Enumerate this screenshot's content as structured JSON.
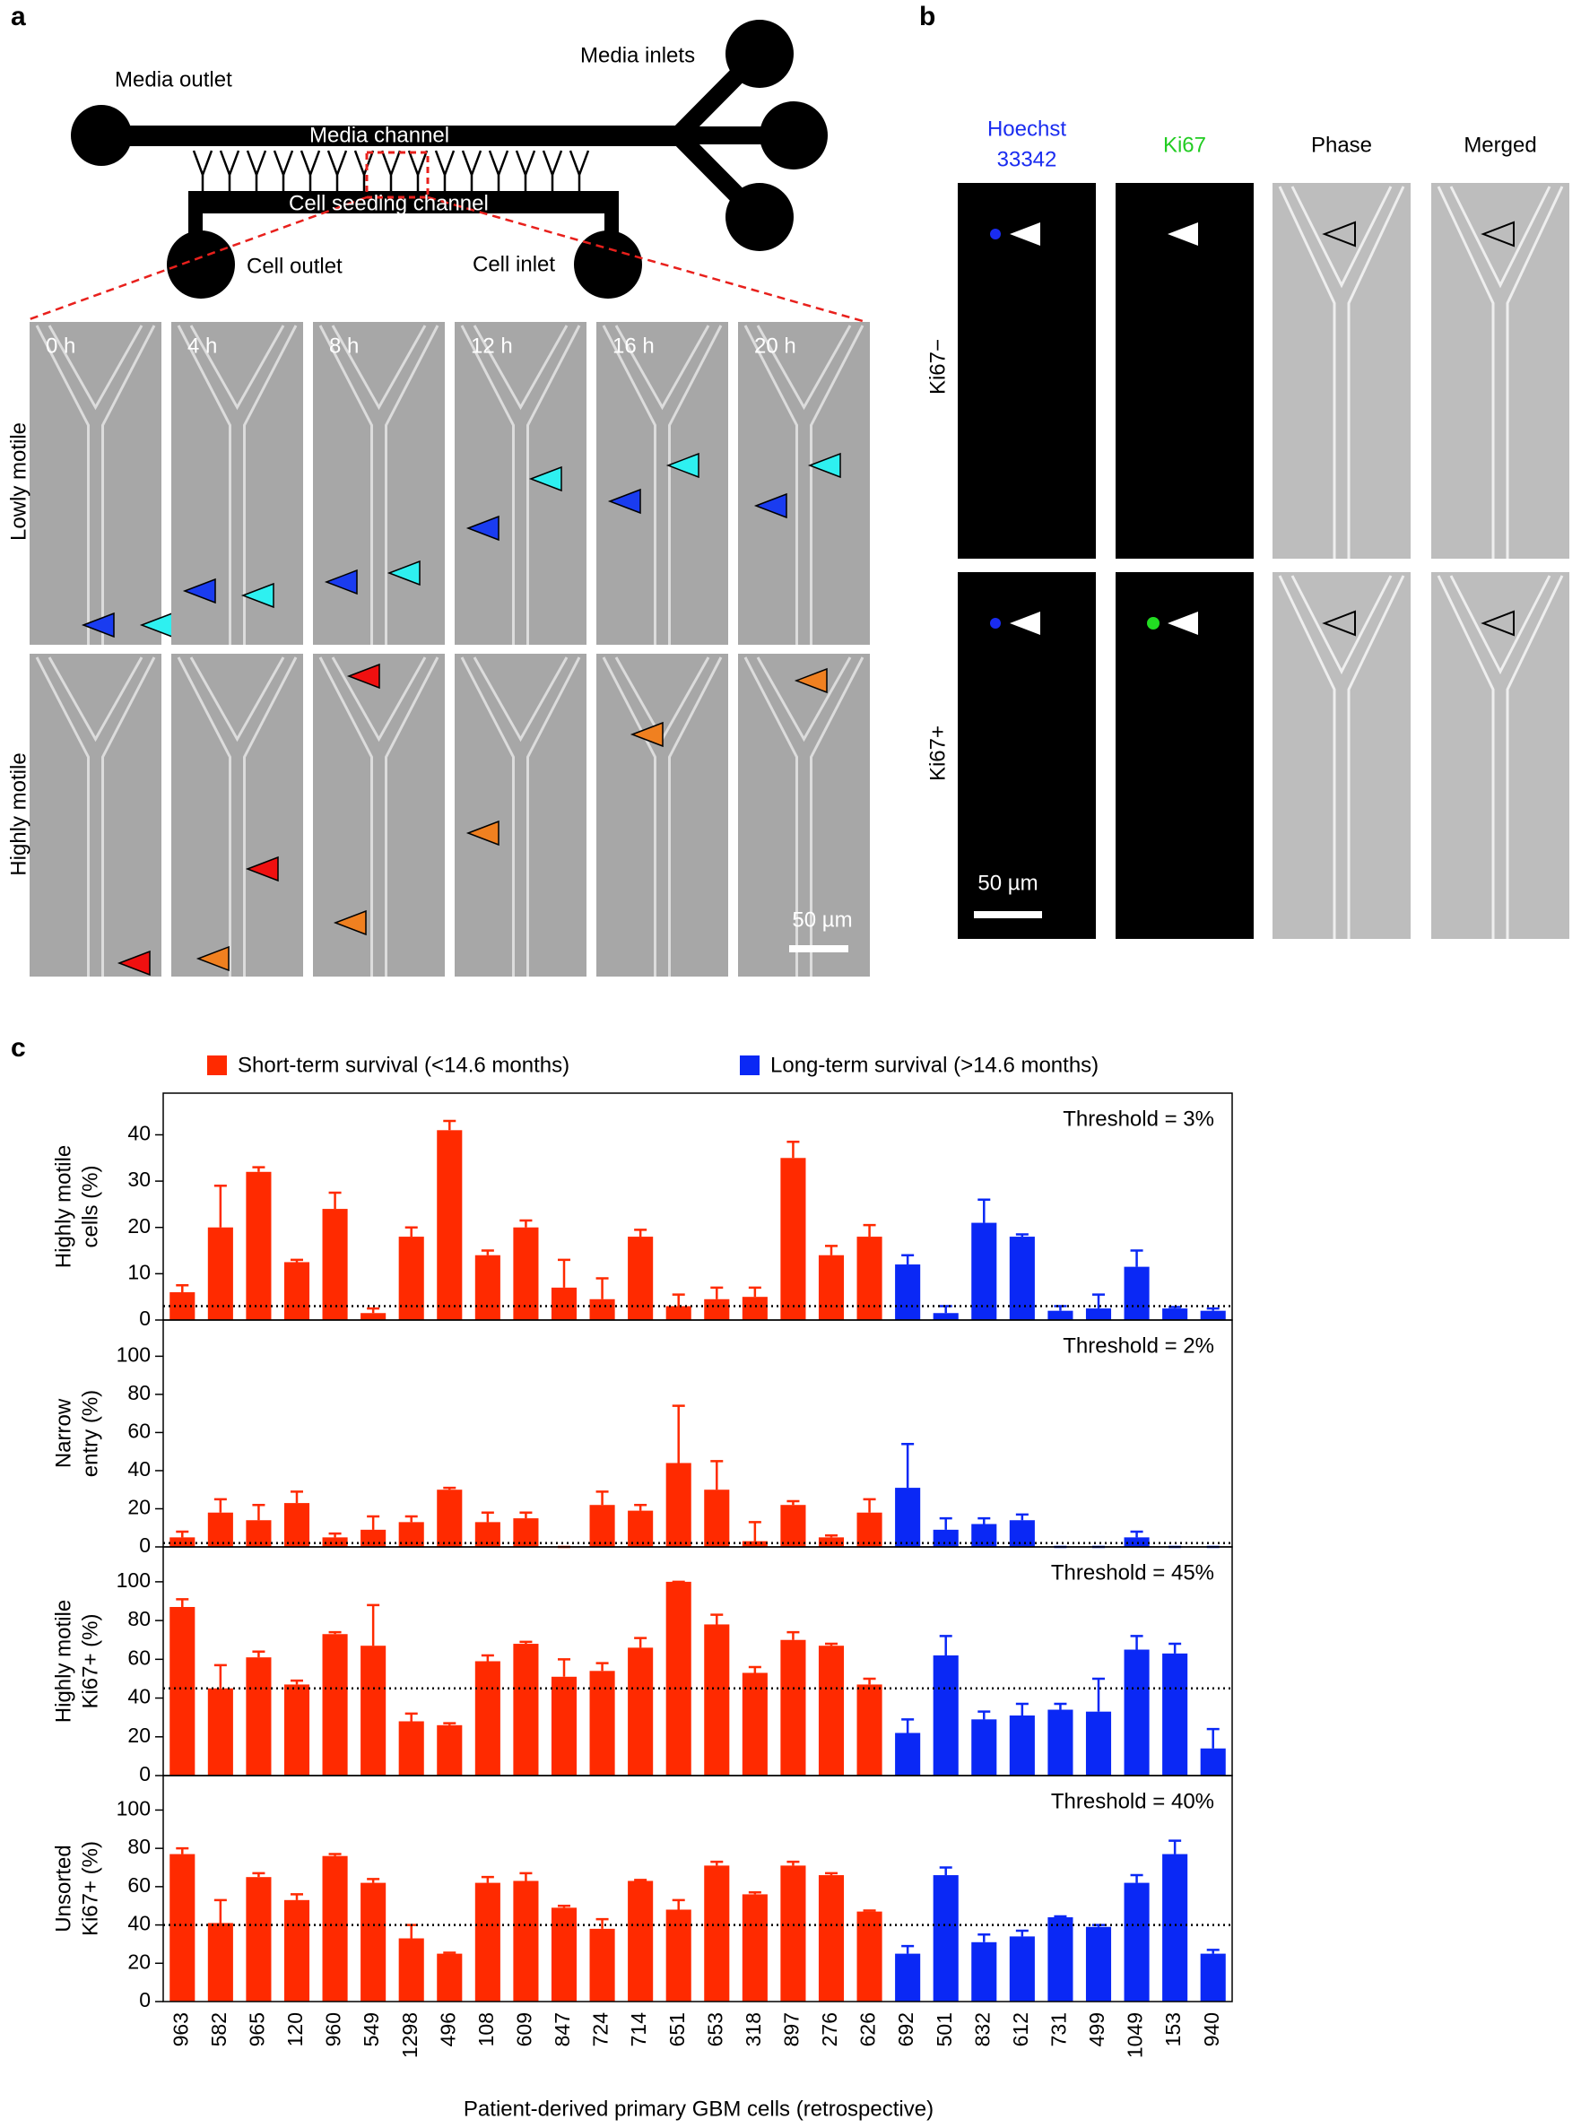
{
  "panel_a": {
    "label": "a",
    "diagram": {
      "media_outlet": "Media outlet",
      "media_inlets": "Media inlets",
      "media_channel": "Media channel",
      "cell_seeding_channel": "Cell seeding channel",
      "cell_outlet": "Cell outlet",
      "cell_inlet": "Cell inlet"
    },
    "time_points": [
      "0 h",
      "4 h",
      "8 h",
      "12 h",
      "16 h",
      "20 h"
    ],
    "rows": [
      "Lowly motile",
      "Highly motile"
    ],
    "scale_bar": "50 µm"
  },
  "panel_b": {
    "label": "b",
    "columns": [
      [
        "Hoechst",
        "33342"
      ],
      [
        "Ki67"
      ],
      [
        "Phase"
      ],
      [
        "Merged"
      ]
    ],
    "rows": [
      "Ki67−",
      "Ki67+"
    ],
    "scale_bar": "50 µm"
  },
  "panel_c": {
    "label": "c",
    "legend": [
      {
        "name": "Short-term survival (<14.6 months)",
        "color": "#ff2a00"
      },
      {
        "name": "Long-term survival (>14.6 months)",
        "color": "#0a28f5"
      }
    ],
    "xlabel": "Patient-derived primary GBM cells (retrospective)"
  },
  "chart_data": [
    {
      "type": "bar",
      "ylabel": [
        "Highly motile",
        "cells (%)"
      ],
      "annotation": "Threshold = 3%",
      "threshold": 3,
      "ylim": [
        0,
        49
      ],
      "yticks": [
        0,
        10,
        20,
        30,
        40
      ],
      "values": [
        6,
        20,
        32,
        12.5,
        24,
        1.5,
        18,
        41,
        14,
        20,
        7,
        4.5,
        18,
        3,
        4.5,
        5,
        35,
        14,
        18,
        12,
        1.5,
        21,
        18,
        2,
        2.5,
        11.5,
        2.5,
        2
      ],
      "errors": [
        1.5,
        9,
        1,
        0.5,
        3.5,
        1,
        2,
        2,
        1,
        1.5,
        6,
        4.5,
        1.5,
        2.5,
        2.5,
        2,
        3.5,
        2,
        2.5,
        2,
        1.5,
        5,
        0.5,
        1,
        3,
        3.5,
        0.3,
        0.5
      ],
      "colors": [
        "#ff2a00",
        "#ff2a00",
        "#ff2a00",
        "#ff2a00",
        "#ff2a00",
        "#ff2a00",
        "#ff2a00",
        "#ff2a00",
        "#ff2a00",
        "#ff2a00",
        "#ff2a00",
        "#ff2a00",
        "#ff2a00",
        "#ff2a00",
        "#ff2a00",
        "#ff2a00",
        "#ff2a00",
        "#ff2a00",
        "#ff2a00",
        "#0a28f5",
        "#0a28f5",
        "#0a28f5",
        "#0a28f5",
        "#0a28f5",
        "#0a28f5",
        "#0a28f5",
        "#0a28f5",
        "#0a28f5"
      ]
    },
    {
      "type": "bar",
      "ylabel": [
        "Narrow",
        "entry (%)"
      ],
      "annotation": "Threshold = 2%",
      "threshold": 2,
      "ylim": [
        0,
        119
      ],
      "yticks": [
        0,
        20,
        40,
        60,
        80,
        100
      ],
      "values": [
        5,
        18,
        14,
        23,
        5,
        9,
        13,
        30,
        13,
        15,
        0,
        22,
        19,
        44,
        30,
        3,
        22,
        5,
        18,
        31,
        9,
        12,
        14,
        0,
        0,
        5,
        0,
        0
      ],
      "errors": [
        3,
        7,
        8,
        6,
        2,
        7,
        3,
        1,
        5,
        3,
        0,
        7,
        3,
        30,
        15,
        10,
        2,
        1,
        7,
        23,
        6,
        3,
        3,
        0,
        0,
        3,
        0,
        0
      ],
      "colors": [
        "#ff2a00",
        "#ff2a00",
        "#ff2a00",
        "#ff2a00",
        "#ff2a00",
        "#ff2a00",
        "#ff2a00",
        "#ff2a00",
        "#ff2a00",
        "#ff2a00",
        "#ff2a00",
        "#ff2a00",
        "#ff2a00",
        "#ff2a00",
        "#ff2a00",
        "#ff2a00",
        "#ff2a00",
        "#ff2a00",
        "#ff2a00",
        "#0a28f5",
        "#0a28f5",
        "#0a28f5",
        "#0a28f5",
        "#0a28f5",
        "#0a28f5",
        "#0a28f5",
        "#0a28f5",
        "#0a28f5"
      ]
    },
    {
      "type": "bar",
      "ylabel": [
        "Highly motile",
        "Ki67+ (%)"
      ],
      "annotation": "Threshold = 45%",
      "threshold": 45,
      "ylim": [
        0,
        118
      ],
      "yticks": [
        0,
        20,
        40,
        60,
        80,
        100
      ],
      "values": [
        87,
        45,
        61,
        47,
        73,
        67,
        28,
        26,
        59,
        68,
        51,
        54,
        66,
        100,
        78,
        53,
        70,
        67,
        47,
        22,
        62,
        29,
        31,
        34,
        33,
        65,
        63,
        14
      ],
      "errors": [
        4,
        12,
        3,
        2,
        1,
        21,
        4,
        1,
        3,
        1,
        9,
        4,
        5,
        0,
        5,
        3,
        4,
        1,
        3,
        7,
        10,
        4,
        6,
        3,
        17,
        7,
        5,
        10
      ],
      "colors": [
        "#ff2a00",
        "#ff2a00",
        "#ff2a00",
        "#ff2a00",
        "#ff2a00",
        "#ff2a00",
        "#ff2a00",
        "#ff2a00",
        "#ff2a00",
        "#ff2a00",
        "#ff2a00",
        "#ff2a00",
        "#ff2a00",
        "#ff2a00",
        "#ff2a00",
        "#ff2a00",
        "#ff2a00",
        "#ff2a00",
        "#ff2a00",
        "#0a28f5",
        "#0a28f5",
        "#0a28f5",
        "#0a28f5",
        "#0a28f5",
        "#0a28f5",
        "#0a28f5",
        "#0a28f5",
        "#0a28f5"
      ]
    },
    {
      "type": "bar",
      "ylabel": [
        "Unsorted",
        "Ki67+ (%)"
      ],
      "annotation": "Threshold = 40%",
      "threshold": 40,
      "ylim": [
        0,
        118
      ],
      "yticks": [
        0,
        20,
        40,
        60,
        80,
        100
      ],
      "categories": [
        "963",
        "582",
        "965",
        "120",
        "960",
        "549",
        "1298",
        "496",
        "108",
        "609",
        "847",
        "724",
        "714",
        "651",
        "653",
        "318",
        "897",
        "276",
        "626",
        "692",
        "501",
        "832",
        "612",
        "731",
        "499",
        "1049",
        "153",
        "940"
      ],
      "values": [
        77,
        41,
        65,
        53,
        76,
        62,
        33,
        25,
        62,
        63,
        49,
        38,
        63,
        48,
        71,
        56,
        71,
        66,
        47,
        25,
        66,
        31,
        34,
        44,
        39,
        62,
        77,
        25
      ],
      "errors": [
        3,
        12,
        2,
        3,
        1,
        2,
        7,
        0.5,
        3,
        4,
        1,
        5,
        0.5,
        5,
        2,
        1,
        2,
        1,
        0.5,
        4,
        4,
        4,
        3,
        0.5,
        1,
        4,
        7,
        2
      ],
      "colors": [
        "#ff2a00",
        "#ff2a00",
        "#ff2a00",
        "#ff2a00",
        "#ff2a00",
        "#ff2a00",
        "#ff2a00",
        "#ff2a00",
        "#ff2a00",
        "#ff2a00",
        "#ff2a00",
        "#ff2a00",
        "#ff2a00",
        "#ff2a00",
        "#ff2a00",
        "#ff2a00",
        "#ff2a00",
        "#ff2a00",
        "#ff2a00",
        "#0a28f5",
        "#0a28f5",
        "#0a28f5",
        "#0a28f5",
        "#0a28f5",
        "#0a28f5",
        "#0a28f5",
        "#0a28f5",
        "#0a28f5"
      ]
    }
  ]
}
